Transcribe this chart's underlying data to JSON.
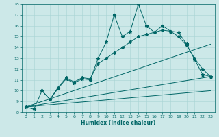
{
  "xlabel": "Humidex (Indice chaleur)",
  "background_color": "#cce8e8",
  "line_color": "#006666",
  "grid_color": "#a8d4d4",
  "xlim": [
    -0.5,
    23.5
  ],
  "ylim": [
    8,
    18
  ],
  "yticks": [
    8,
    9,
    10,
    11,
    12,
    13,
    14,
    15,
    16,
    17,
    18
  ],
  "xticks": [
    0,
    1,
    2,
    3,
    4,
    5,
    6,
    7,
    8,
    9,
    10,
    11,
    12,
    13,
    14,
    15,
    16,
    17,
    18,
    19,
    20,
    21,
    22,
    23
  ],
  "series1_x": [
    0,
    1,
    2,
    3,
    4,
    5,
    6,
    7,
    8,
    9,
    10,
    11,
    12,
    13,
    14,
    15,
    16,
    17,
    18,
    19,
    20,
    21,
    22,
    23
  ],
  "series1_y": [
    8.5,
    8.3,
    10.0,
    9.2,
    10.2,
    11.1,
    10.7,
    11.1,
    11.0,
    13.0,
    14.5,
    17.0,
    15.0,
    15.5,
    18.0,
    16.0,
    15.4,
    16.0,
    15.5,
    15.4,
    14.3,
    12.9,
    11.5,
    11.3
  ],
  "series2_x": [
    2,
    3,
    4,
    5,
    6,
    7,
    8,
    9,
    10,
    11,
    12,
    13,
    14,
    15,
    16,
    17,
    18,
    19,
    20,
    21,
    22,
    23
  ],
  "series2_y": [
    10.0,
    9.2,
    10.3,
    11.2,
    10.8,
    11.2,
    11.1,
    12.5,
    13.0,
    13.5,
    14.0,
    14.5,
    15.0,
    15.2,
    15.4,
    15.6,
    15.5,
    15.0,
    14.2,
    13.0,
    12.0,
    11.3
  ],
  "series3_x": [
    0,
    23
  ],
  "series3_y": [
    8.5,
    14.3
  ],
  "series4_x": [
    0,
    23
  ],
  "series4_y": [
    8.5,
    11.3
  ],
  "series5_x": [
    0,
    23
  ],
  "series5_y": [
    8.5,
    10.0
  ]
}
